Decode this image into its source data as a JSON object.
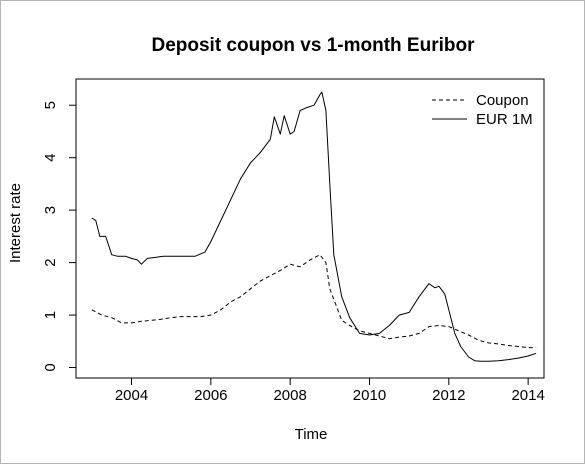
{
  "chart_data": {
    "type": "line",
    "title": "Deposit coupon vs 1-month Euribor",
    "xlabel": "Time",
    "ylabel": "Interest rate",
    "xlim": [
      2002.6,
      2014.4
    ],
    "ylim": [
      -0.2,
      5.5
    ],
    "x_ticks": [
      2004,
      2006,
      2008,
      2010,
      2012,
      2014
    ],
    "y_ticks": [
      0,
      1,
      2,
      3,
      4,
      5
    ],
    "legend_position": "top-right",
    "grid": false,
    "series": [
      {
        "name": "Coupon",
        "line_style": "dashed",
        "color": "#000000",
        "x": [
          2003.0,
          2003.25,
          2003.5,
          2003.75,
          2004.0,
          2004.25,
          2004.5,
          2004.75,
          2005.0,
          2005.25,
          2005.5,
          2005.75,
          2006.0,
          2006.25,
          2006.5,
          2006.75,
          2007.0,
          2007.25,
          2007.5,
          2007.75,
          2008.0,
          2008.25,
          2008.5,
          2008.75,
          2008.9,
          2009.0,
          2009.15,
          2009.3,
          2009.5,
          2009.75,
          2010.0,
          2010.25,
          2010.5,
          2010.75,
          2011.0,
          2011.25,
          2011.5,
          2011.75,
          2012.0,
          2012.25,
          2012.5,
          2012.75,
          2013.0,
          2013.25,
          2013.5,
          2013.75,
          2014.0,
          2014.2
        ],
        "y": [
          1.1,
          1.0,
          0.95,
          0.85,
          0.85,
          0.88,
          0.9,
          0.92,
          0.95,
          0.97,
          0.97,
          0.97,
          1.0,
          1.1,
          1.25,
          1.35,
          1.5,
          1.65,
          1.75,
          1.85,
          1.97,
          1.92,
          2.05,
          2.15,
          2.0,
          1.5,
          1.2,
          0.9,
          0.8,
          0.7,
          0.65,
          0.6,
          0.55,
          0.58,
          0.6,
          0.65,
          0.78,
          0.8,
          0.78,
          0.7,
          0.62,
          0.52,
          0.47,
          0.45,
          0.42,
          0.4,
          0.38,
          0.38
        ]
      },
      {
        "name": "EUR 1M",
        "line_style": "solid",
        "color": "#000000",
        "x": [
          2003.0,
          2003.1,
          2003.2,
          2003.35,
          2003.5,
          2003.65,
          2003.85,
          2004.0,
          2004.15,
          2004.25,
          2004.4,
          2004.6,
          2004.8,
          2005.0,
          2005.3,
          2005.6,
          2005.85,
          2006.0,
          2006.25,
          2006.5,
          2006.75,
          2007.0,
          2007.25,
          2007.5,
          2007.6,
          2007.75,
          2007.85,
          2008.0,
          2008.1,
          2008.25,
          2008.4,
          2008.6,
          2008.75,
          2008.8,
          2008.9,
          2009.0,
          2009.1,
          2009.3,
          2009.5,
          2009.75,
          2010.0,
          2010.25,
          2010.5,
          2010.75,
          2011.0,
          2011.25,
          2011.5,
          2011.65,
          2011.75,
          2011.9,
          2012.0,
          2012.15,
          2012.3,
          2012.5,
          2012.65,
          2012.8,
          2013.0,
          2013.25,
          2013.5,
          2013.75,
          2014.0,
          2014.2
        ],
        "y": [
          2.85,
          2.8,
          2.5,
          2.5,
          2.15,
          2.12,
          2.12,
          2.08,
          2.05,
          1.97,
          2.08,
          2.1,
          2.12,
          2.12,
          2.12,
          2.12,
          2.2,
          2.4,
          2.8,
          3.2,
          3.6,
          3.9,
          4.1,
          4.35,
          4.78,
          4.45,
          4.8,
          4.45,
          4.5,
          4.9,
          4.95,
          5.0,
          5.2,
          5.25,
          4.9,
          3.5,
          2.15,
          1.35,
          0.95,
          0.65,
          0.62,
          0.65,
          0.8,
          1.0,
          1.05,
          1.35,
          1.6,
          1.52,
          1.55,
          1.4,
          1.1,
          0.65,
          0.4,
          0.2,
          0.13,
          0.12,
          0.12,
          0.13,
          0.15,
          0.18,
          0.22,
          0.27
        ]
      }
    ]
  }
}
